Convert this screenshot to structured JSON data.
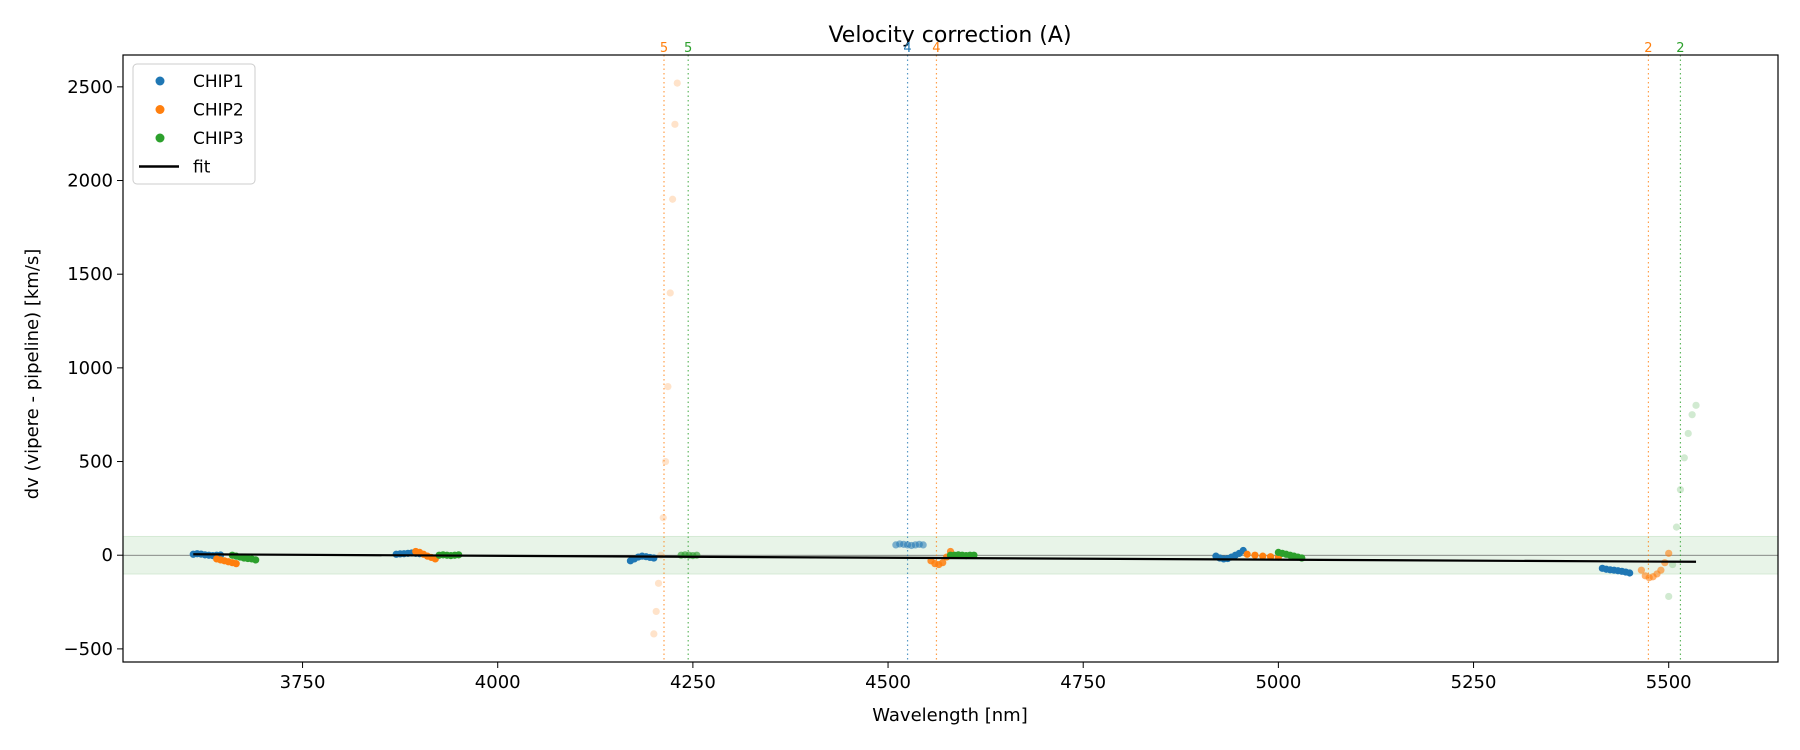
{
  "chart_data": {
    "type": "scatter",
    "title": "Velocity correction (A)",
    "xlabel": "Wavelength [nm]",
    "ylabel": "dv (vipere - pipeline) [km/s]",
    "xlim": [
      3520,
      5640
    ],
    "ylim": [
      -570,
      2670
    ],
    "xticks": [
      3750,
      4000,
      4250,
      4500,
      4750,
      5000,
      5250,
      5500
    ],
    "yticks": [
      -500,
      0,
      500,
      1000,
      1500,
      2000,
      2500
    ],
    "band": [
      -100,
      100
    ],
    "band_color": "#e8f4e8",
    "zero_line_color": "#666666",
    "legend": {
      "placement": "top-left",
      "entries": [
        {
          "name": "CHIP1",
          "kind": "marker",
          "color": "#1f77b4"
        },
        {
          "name": "CHIP2",
          "kind": "marker",
          "color": "#ff7f0e"
        },
        {
          "name": "CHIP3",
          "kind": "marker",
          "color": "#2ca02c"
        },
        {
          "name": "fit",
          "kind": "line",
          "color": "#000000"
        }
      ]
    },
    "fit": {
      "x": [
        3610,
        5535
      ],
      "y": [
        5,
        -35
      ],
      "color": "#000000"
    },
    "vlines": [
      {
        "x": 4213,
        "label": "5",
        "color": "#ff7f0e"
      },
      {
        "x": 4244,
        "label": "5",
        "color": "#2ca02c"
      },
      {
        "x": 4525,
        "label": "4",
        "color": "#1f77b4"
      },
      {
        "x": 4562,
        "label": "4",
        "color": "#ff7f0e"
      },
      {
        "x": 5474,
        "label": "2",
        "color": "#ff7f0e"
      },
      {
        "x": 5515,
        "label": "2",
        "color": "#2ca02c"
      }
    ],
    "series": [
      {
        "name": "CHIP1",
        "color": "#1f77b4",
        "segments": [
          {
            "x": [
              3610,
              3615,
              3620,
              3625,
              3630,
              3635,
              3640,
              3645
            ],
            "y": [
              5,
              8,
              6,
              2,
              0,
              -2,
              0,
              1
            ],
            "alpha": 1
          },
          {
            "x": [
              3870,
              3875,
              3880,
              3885,
              3890,
              3895,
              3900
            ],
            "y": [
              5,
              7,
              8,
              10,
              12,
              10,
              8
            ],
            "alpha": 1
          },
          {
            "x": [
              4170,
              4175,
              4180,
              4185,
              4190,
              4195,
              4200
            ],
            "y": [
              -30,
              -20,
              -10,
              -5,
              -8,
              -12,
              -15
            ],
            "alpha": 1
          },
          {
            "x": [
              4510,
              4515,
              4520,
              4525,
              4530,
              4535,
              4540,
              4545
            ],
            "y": [
              55,
              60,
              58,
              55,
              52,
              55,
              58,
              55
            ],
            "alpha": 0.55
          },
          {
            "x": [
              4920,
              4925,
              4930,
              4935,
              4940,
              4945,
              4950,
              4955
            ],
            "y": [
              -5,
              -15,
              -20,
              -18,
              -10,
              0,
              10,
              25
            ],
            "alpha": 1
          },
          {
            "x": [
              5415,
              5420,
              5425,
              5430,
              5435,
              5440,
              5445,
              5450
            ],
            "y": [
              -70,
              -75,
              -78,
              -80,
              -83,
              -86,
              -90,
              -95
            ],
            "alpha": 1
          }
        ]
      },
      {
        "name": "CHIP2",
        "color": "#ff7f0e",
        "segments": [
          {
            "x": [
              3640,
              3645,
              3650,
              3655,
              3660,
              3665
            ],
            "y": [
              -20,
              -25,
              -30,
              -35,
              -40,
              -45
            ],
            "alpha": 1
          },
          {
            "x": [
              3895,
              3900,
              3905,
              3910,
              3915,
              3920
            ],
            "y": [
              20,
              15,
              5,
              -5,
              -12,
              -20
            ],
            "alpha": 1
          },
          {
            "x": [
              4200,
              4203,
              4206,
              4209,
              4212,
              4215,
              4218,
              4221,
              4224,
              4227,
              4230
            ],
            "y": [
              -420,
              -300,
              -150,
              0,
              200,
              500,
              900,
              1400,
              1900,
              2300,
              2520
            ],
            "alpha": 0.22
          },
          {
            "x": [
              4555,
              4560,
              4565,
              4570,
              4575,
              4580
            ],
            "y": [
              -30,
              -45,
              -50,
              -40,
              -10,
              20
            ],
            "alpha": 0.85
          },
          {
            "x": [
              4960,
              4970,
              4980,
              4990,
              5000
            ],
            "y": [
              5,
              0,
              -5,
              -8,
              -10
            ],
            "alpha": 1
          },
          {
            "x": [
              5465,
              5470,
              5475,
              5480,
              5485,
              5490,
              5495,
              5500
            ],
            "y": [
              -80,
              -110,
              -120,
              -115,
              -100,
              -80,
              -40,
              10
            ],
            "alpha": 0.6
          }
        ]
      },
      {
        "name": "CHIP3",
        "color": "#2ca02c",
        "segments": [
          {
            "x": [
              3660,
              3665,
              3670,
              3675,
              3680,
              3685,
              3690
            ],
            "y": [
              0,
              -5,
              -10,
              -15,
              -18,
              -20,
              -25
            ],
            "alpha": 1
          },
          {
            "x": [
              3925,
              3930,
              3935,
              3940,
              3945,
              3950
            ],
            "y": [
              0,
              2,
              0,
              -2,
              0,
              2
            ],
            "alpha": 1
          },
          {
            "x": [
              4235,
              4240,
              4245,
              4250,
              4255
            ],
            "y": [
              0,
              2,
              0,
              -2,
              0
            ],
            "alpha": 0.65
          },
          {
            "x": [
              4580,
              4585,
              4590,
              4595,
              4600,
              4605,
              4610
            ],
            "y": [
              0,
              0,
              2,
              0,
              -2,
              0,
              0
            ],
            "alpha": 1
          },
          {
            "x": [
              5000,
              5005,
              5010,
              5015,
              5020,
              5025,
              5030
            ],
            "y": [
              15,
              10,
              5,
              0,
              -5,
              -10,
              -15
            ],
            "alpha": 1
          },
          {
            "x": [
              5500,
              5505,
              5510,
              5515,
              5520,
              5525,
              5530,
              5535
            ],
            "y": [
              -220,
              -50,
              150,
              350,
              520,
              650,
              750,
              800
            ],
            "alpha": 0.22
          }
        ]
      }
    ]
  }
}
